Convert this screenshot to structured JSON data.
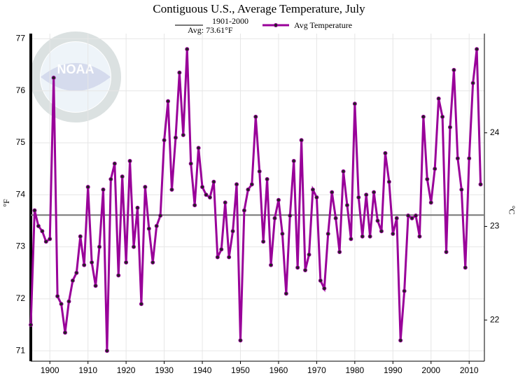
{
  "chart_data": {
    "type": "line",
    "title": "Contiguous U.S., Average Temperature, July",
    "ylabel": "°F",
    "y2label": "°C",
    "watermark": "NOAA",
    "reference": {
      "label": "1901-2000",
      "value_label": "Avg: 73.61°F",
      "value": 73.61,
      "color": "#777777"
    },
    "x": [
      1895,
      1896,
      1897,
      1898,
      1899,
      1900,
      1901,
      1902,
      1903,
      1904,
      1905,
      1906,
      1907,
      1908,
      1909,
      1910,
      1911,
      1912,
      1913,
      1914,
      1915,
      1916,
      1917,
      1918,
      1919,
      1920,
      1921,
      1922,
      1923,
      1924,
      1925,
      1926,
      1927,
      1928,
      1929,
      1930,
      1931,
      1932,
      1933,
      1934,
      1935,
      1936,
      1937,
      1938,
      1939,
      1940,
      1941,
      1942,
      1943,
      1944,
      1945,
      1946,
      1947,
      1948,
      1949,
      1950,
      1951,
      1952,
      1953,
      1954,
      1955,
      1956,
      1957,
      1958,
      1959,
      1960,
      1961,
      1962,
      1963,
      1964,
      1965,
      1966,
      1967,
      1968,
      1969,
      1970,
      1971,
      1972,
      1973,
      1974,
      1975,
      1976,
      1977,
      1978,
      1979,
      1980,
      1981,
      1982,
      1983,
      1984,
      1985,
      1986,
      1987,
      1988,
      1989,
      1990,
      1991,
      1992,
      1993,
      1994,
      1995,
      1996,
      1997,
      1998,
      1999,
      2000,
      2001,
      2002,
      2003,
      2004,
      2005,
      2006,
      2007,
      2008,
      2009,
      2010,
      2011,
      2012,
      2013
    ],
    "series": [
      {
        "name": "Avg Temperature",
        "color": "#990099",
        "values": [
          71.5,
          73.7,
          73.4,
          73.3,
          73.1,
          73.15,
          76.25,
          72.05,
          71.9,
          71.35,
          71.95,
          72.35,
          72.5,
          73.2,
          72.65,
          74.15,
          72.7,
          72.25,
          73.0,
          74.1,
          71.0,
          74.3,
          74.6,
          72.45,
          74.35,
          72.7,
          74.65,
          73.0,
          73.75,
          71.9,
          74.15,
          73.35,
          72.7,
          73.4,
          73.6,
          75.05,
          75.8,
          74.1,
          75.1,
          76.35,
          75.15,
          76.8,
          74.6,
          73.8,
          74.9,
          74.15,
          74.0,
          73.95,
          74.25,
          72.8,
          72.95,
          73.85,
          72.8,
          73.3,
          74.2,
          71.2,
          73.7,
          74.1,
          74.2,
          75.5,
          74.45,
          73.1,
          74.3,
          72.65,
          73.55,
          73.9,
          73.25,
          72.1,
          73.6,
          74.65,
          72.6,
          75.05,
          72.55,
          72.85,
          74.1,
          73.95,
          72.35,
          72.2,
          73.25,
          74.05,
          73.55,
          72.9,
          74.45,
          73.8,
          73.15,
          75.75,
          73.95,
          73.2,
          74.0,
          73.2,
          74.05,
          73.5,
          73.3,
          74.8,
          74.25,
          73.25,
          73.55,
          71.2,
          72.15,
          73.6,
          73.55,
          73.6,
          73.2,
          75.5,
          74.3,
          73.85,
          74.5,
          75.85,
          75.5,
          72.9,
          75.3,
          76.4,
          74.7,
          74.1,
          72.6,
          74.7,
          76.15,
          76.8,
          74.2
        ]
      }
    ],
    "xlim": [
      1895,
      2014
    ],
    "xticks": [
      1900,
      1910,
      1920,
      1930,
      1940,
      1950,
      1960,
      1970,
      1980,
      1990,
      2000,
      2010
    ],
    "ylim": [
      70.8,
      77.1
    ],
    "yticks": [
      71,
      72,
      73,
      74,
      75,
      76,
      77
    ],
    "y2lim": [
      21.56,
      25.06
    ],
    "y2ticks": [
      22,
      23,
      24
    ],
    "grid": true
  }
}
